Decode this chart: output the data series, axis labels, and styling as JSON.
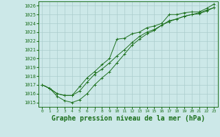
{
  "bg_color": "#cce8e8",
  "grid_color": "#aacccc",
  "line_color": "#1a6e1a",
  "marker": "+",
  "title": "Graphe pression niveau de la mer (hPa)",
  "title_fontsize": 7,
  "ylim": [
    1014.5,
    1026.5
  ],
  "xlim": [
    -0.5,
    23.5
  ],
  "yticks": [
    1015,
    1016,
    1017,
    1018,
    1019,
    1020,
    1021,
    1022,
    1023,
    1024,
    1025,
    1026
  ],
  "xticks": [
    0,
    1,
    2,
    3,
    4,
    5,
    6,
    7,
    8,
    9,
    10,
    11,
    12,
    13,
    14,
    15,
    16,
    17,
    18,
    19,
    20,
    21,
    22,
    23
  ],
  "series1": [
    1017.0,
    1016.6,
    1016.0,
    1015.8,
    1015.8,
    1016.8,
    1017.8,
    1018.5,
    1019.3,
    1020.0,
    1022.2,
    1022.3,
    1022.8,
    1023.0,
    1023.5,
    1023.7,
    1024.0,
    1025.0,
    1025.0,
    1025.2,
    1025.3,
    1025.3,
    1025.7,
    1026.2
  ],
  "series2": [
    1017.0,
    1016.6,
    1016.0,
    1015.8,
    1015.8,
    1016.3,
    1017.3,
    1018.2,
    1018.8,
    1019.5,
    1020.3,
    1021.0,
    1021.8,
    1022.5,
    1023.0,
    1023.3,
    1023.8,
    1024.2,
    1024.5,
    1024.8,
    1025.0,
    1025.2,
    1025.5,
    1025.8
  ],
  "series3": [
    1017.0,
    1016.6,
    1015.7,
    1015.2,
    1015.0,
    1015.3,
    1016.0,
    1017.0,
    1017.8,
    1018.5,
    1019.5,
    1020.5,
    1021.5,
    1022.2,
    1022.8,
    1023.2,
    1023.8,
    1024.3,
    1024.5,
    1024.8,
    1025.0,
    1025.1,
    1025.4,
    1025.8
  ]
}
